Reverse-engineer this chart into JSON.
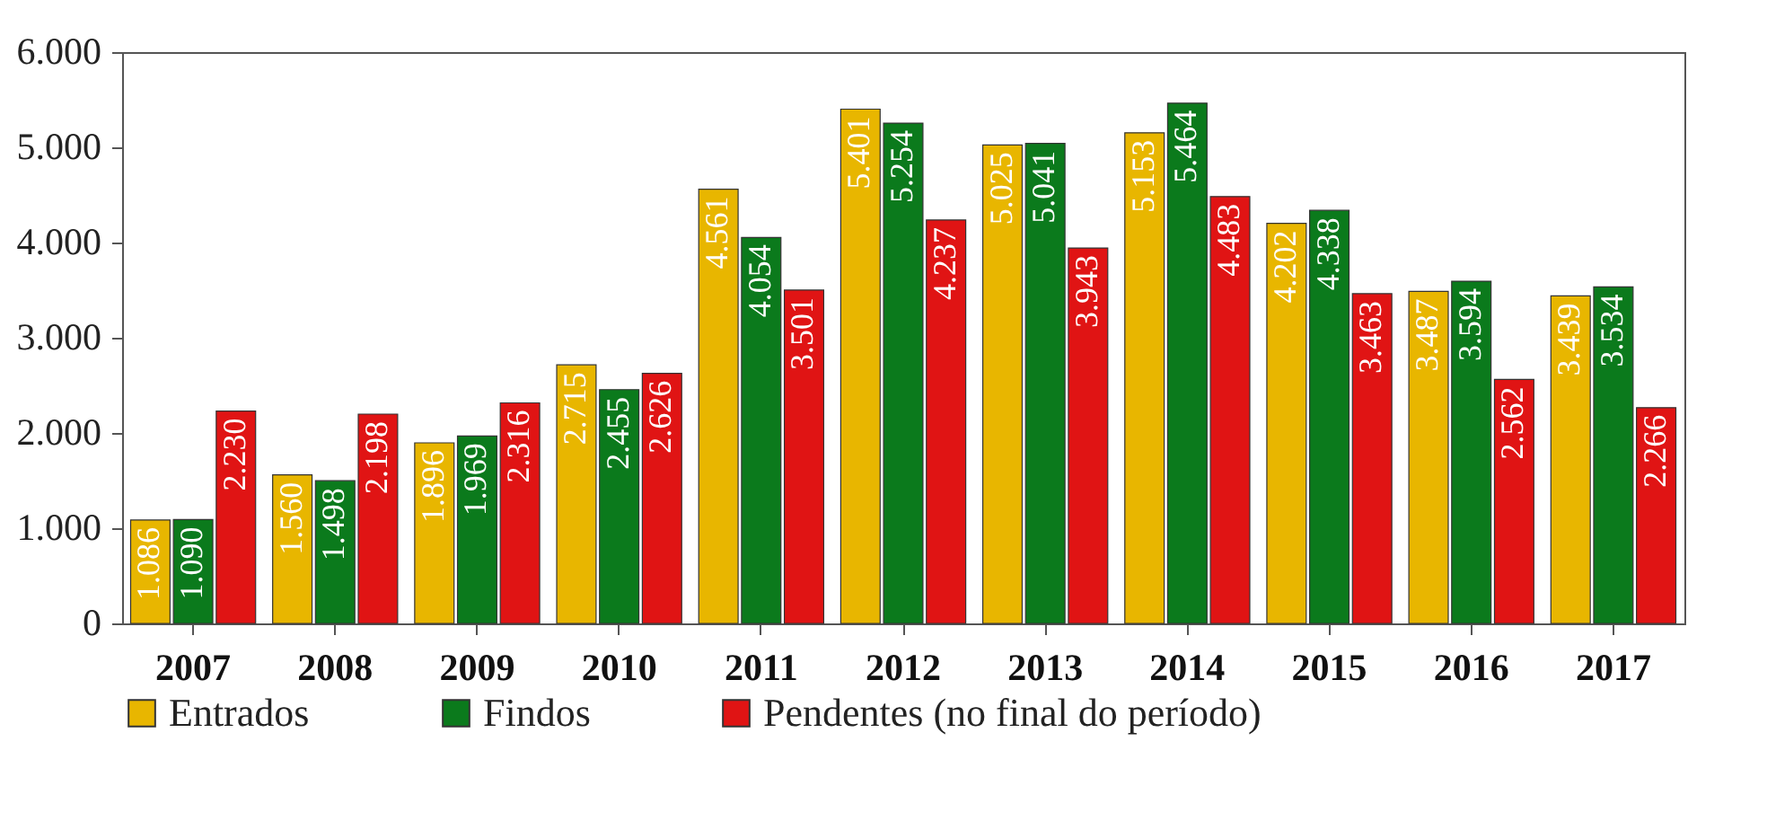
{
  "chart_data": {
    "type": "bar",
    "categories": [
      "2007",
      "2008",
      "2009",
      "2010",
      "2011",
      "2012",
      "2013",
      "2014",
      "2015",
      "2016",
      "2017"
    ],
    "series": [
      {
        "name": "Entrados",
        "color": "#e8b600",
        "values": [
          1086,
          1560,
          1896,
          2715,
          4561,
          5401,
          5025,
          5153,
          4202,
          3487,
          3439
        ],
        "value_labels": [
          "1.086",
          "1.560",
          "1.896",
          "2.715",
          "4.561",
          "5.401",
          "5.025",
          "5.153",
          "4.202",
          "3.487",
          "3.439"
        ]
      },
      {
        "name": "Findos",
        "color": "#0b7a1c",
        "values": [
          1090,
          1498,
          1969,
          2455,
          4054,
          5254,
          5041,
          5464,
          4338,
          3594,
          3534
        ],
        "value_labels": [
          "1.090",
          "1.498",
          "1.969",
          "2.455",
          "4.054",
          "5.254",
          "5.041",
          "5.464",
          "4.338",
          "3.594",
          "3.534"
        ]
      },
      {
        "name": "Pendentes (no final do período)",
        "color": "#e01414",
        "values": [
          2230,
          2198,
          2316,
          2626,
          3501,
          4237,
          3943,
          4483,
          3463,
          2562,
          2266
        ],
        "value_labels": [
          "2.230",
          "2.198",
          "2.316",
          "2.626",
          "3.501",
          "4.237",
          "3.943",
          "4.483",
          "3.463",
          "2.562",
          "2.266"
        ]
      }
    ],
    "ylim": [
      0,
      6000
    ],
    "yticks": [
      {
        "value": 0,
        "label": "0"
      },
      {
        "value": 1000,
        "label": "1.000"
      },
      {
        "value": 2000,
        "label": "2.000"
      },
      {
        "value": 3000,
        "label": "3.000"
      },
      {
        "value": 4000,
        "label": "4.000"
      },
      {
        "value": 5000,
        "label": "5.000"
      },
      {
        "value": 6000,
        "label": "6.000"
      }
    ],
    "grid": false,
    "legend": "bottom"
  }
}
